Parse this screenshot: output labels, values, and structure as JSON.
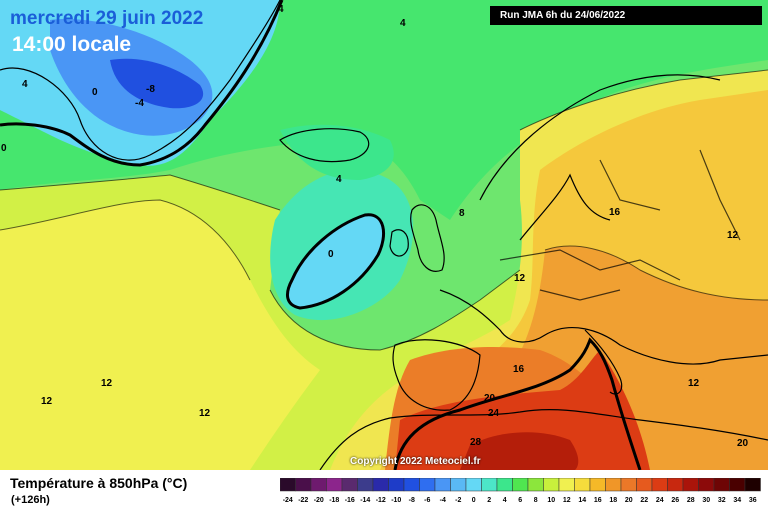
{
  "header": {
    "date": "mercredi 29 juin 2022",
    "time": "14:00 locale",
    "run": "Run JMA 6h du 24/06/2022"
  },
  "copyright": "Copyright 2022 Meteociel.fr",
  "legend": {
    "title": "Température à 850hPa (°C)",
    "subtitle": "(+126h)",
    "scale": [
      {
        "v": "-24",
        "c": "#2a0a2a"
      },
      {
        "v": "-22",
        "c": "#4a0f4a"
      },
      {
        "v": "-20",
        "c": "#6e1a6e"
      },
      {
        "v": "-18",
        "c": "#8c258c"
      },
      {
        "v": "-16",
        "c": "#5a2a6e"
      },
      {
        "v": "-14",
        "c": "#3c3c8c"
      },
      {
        "v": "-12",
        "c": "#2a2aaa"
      },
      {
        "v": "-10",
        "c": "#1e3cc8"
      },
      {
        "v": "-8",
        "c": "#2050e0"
      },
      {
        "v": "-6",
        "c": "#2f6ef0"
      },
      {
        "v": "-4",
        "c": "#4a96f5"
      },
      {
        "v": "-2",
        "c": "#5ab9f5"
      },
      {
        "v": "0",
        "c": "#64d8f5"
      },
      {
        "v": "2",
        "c": "#4ce6c8"
      },
      {
        "v": "4",
        "c": "#3ce68c"
      },
      {
        "v": "6",
        "c": "#50e650"
      },
      {
        "v": "8",
        "c": "#8ce63c"
      },
      {
        "v": "10",
        "c": "#c8f03c"
      },
      {
        "v": "12",
        "c": "#f0f050"
      },
      {
        "v": "14",
        "c": "#f5dc3c"
      },
      {
        "v": "16",
        "c": "#f5b928"
      },
      {
        "v": "18",
        "c": "#f09628"
      },
      {
        "v": "20",
        "c": "#eb7828"
      },
      {
        "v": "22",
        "c": "#e65a1e"
      },
      {
        "v": "24",
        "c": "#dc3c14"
      },
      {
        "v": "26",
        "c": "#c8280f"
      },
      {
        "v": "28",
        "c": "#aa140a"
      },
      {
        "v": "30",
        "c": "#8c0a0a"
      },
      {
        "v": "32",
        "c": "#6e0505"
      },
      {
        "v": "34",
        "c": "#4a0000"
      },
      {
        "v": "36",
        "c": "#1e0000"
      }
    ]
  },
  "map": {
    "colors": {
      "ocean_green": "#6ee66e",
      "land_yellow_green": "#d2f046",
      "yellow": "#f0f050",
      "orange_light": "#f5c83c",
      "orange": "#f0a032",
      "orange_dark": "#eb7d28",
      "red": "#dc3c14",
      "dark_red": "#b41e0a",
      "cyan": "#5ad2f0",
      "blue": "#3c78f0",
      "teal": "#46e6b4"
    },
    "contour_labels": [
      {
        "id": "m8",
        "text": "-8"
      },
      {
        "id": "m4",
        "text": "-4"
      },
      {
        "id": "z1",
        "text": "0"
      },
      {
        "id": "z2",
        "text": "0"
      },
      {
        "id": "z3",
        "text": "0"
      },
      {
        "id": "f1",
        "text": "4"
      },
      {
        "id": "f2",
        "text": "4"
      },
      {
        "id": "f3",
        "text": "4"
      },
      {
        "id": "f4",
        "text": "4"
      },
      {
        "id": "e1",
        "text": "8"
      },
      {
        "id": "t1",
        "text": "12"
      },
      {
        "id": "t2",
        "text": "12"
      },
      {
        "id": "t3",
        "text": "12"
      },
      {
        "id": "t4",
        "text": "12"
      },
      {
        "id": "t5",
        "text": "12"
      },
      {
        "id": "t6",
        "text": "12"
      },
      {
        "id": "s1",
        "text": "16"
      },
      {
        "id": "s2",
        "text": "16"
      },
      {
        "id": "w1",
        "text": "20"
      },
      {
        "id": "w2",
        "text": "20"
      },
      {
        "id": "w3",
        "text": "24"
      },
      {
        "id": "w4",
        "text": "28"
      }
    ]
  }
}
